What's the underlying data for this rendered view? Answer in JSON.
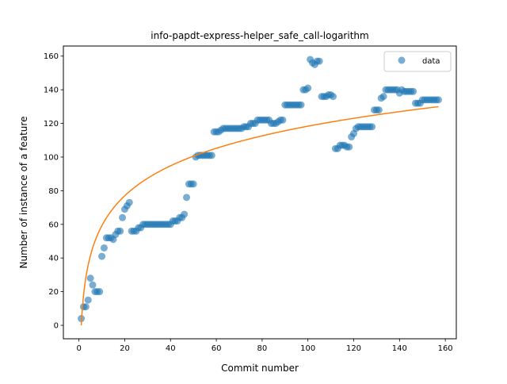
{
  "chart_data": {
    "type": "scatter",
    "title": "info-papdt-express-helper_safe_call-logarithm",
    "xlabel": "Commit number",
    "ylabel": "Number of instance of a feature",
    "xlim": [
      -6.8,
      164.8
    ],
    "ylim": [
      -8.0,
      166.0
    ],
    "grid": false,
    "legend_position": "top-right",
    "x_ticks": [
      "0",
      "20",
      "40",
      "60",
      "80",
      "100",
      "120",
      "140",
      "160"
    ],
    "y_ticks": [
      "0",
      "20",
      "40",
      "60",
      "80",
      "100",
      "120",
      "140",
      "160"
    ],
    "colors": {
      "data": "#1f77b4",
      "fit": "#ff7f0e"
    },
    "series": [
      {
        "name": "data",
        "kind": "scatter",
        "x": [
          1,
          2,
          3,
          4,
          5,
          6,
          7,
          8,
          9,
          10,
          11,
          12,
          13,
          14,
          15,
          16,
          17,
          18,
          19,
          20,
          21,
          22,
          23,
          24,
          25,
          26,
          27,
          28,
          29,
          30,
          31,
          32,
          33,
          34,
          35,
          36,
          37,
          38,
          39,
          40,
          41,
          42,
          43,
          44,
          45,
          46,
          47,
          48,
          49,
          50,
          51,
          52,
          53,
          54,
          55,
          56,
          57,
          58,
          59,
          60,
          61,
          62,
          63,
          64,
          65,
          66,
          67,
          68,
          69,
          70,
          71,
          72,
          73,
          74,
          75,
          76,
          77,
          78,
          79,
          80,
          81,
          82,
          83,
          84,
          85,
          86,
          87,
          88,
          89,
          90,
          91,
          92,
          93,
          94,
          95,
          96,
          97,
          98,
          99,
          100,
          101,
          102,
          103,
          104,
          105,
          106,
          107,
          108,
          109,
          110,
          111,
          112,
          113,
          114,
          115,
          116,
          117,
          118,
          119,
          120,
          121,
          122,
          123,
          124,
          125,
          126,
          127,
          128,
          129,
          130,
          131,
          132,
          133,
          134,
          135,
          136,
          137,
          138,
          139,
          140,
          141,
          142,
          143,
          144,
          145,
          146,
          147,
          148,
          149,
          150,
          151,
          152,
          153,
          154,
          155,
          156,
          157
        ],
        "y": [
          4,
          11,
          11,
          15,
          28,
          24,
          20,
          20,
          20,
          41,
          46,
          52,
          52,
          52,
          51,
          54,
          56,
          56,
          64,
          69,
          71,
          73,
          56,
          56,
          56,
          58,
          58,
          60,
          60,
          60,
          60,
          60,
          60,
          60,
          60,
          60,
          60,
          60,
          60,
          60,
          62,
          62,
          62,
          64,
          64,
          66,
          76,
          84,
          84,
          84,
          100,
          101,
          101,
          101,
          101,
          101,
          101,
          101,
          115,
          115,
          115,
          116,
          117,
          117,
          117,
          117,
          117,
          117,
          117,
          117,
          117,
          118,
          118,
          118,
          120,
          120,
          120,
          122,
          122,
          122,
          122,
          122,
          122,
          120,
          120,
          120,
          121,
          122,
          122,
          131,
          131,
          131,
          131,
          131,
          131,
          131,
          131,
          140,
          140,
          141,
          158,
          156,
          155,
          157,
          157,
          136,
          136,
          136,
          137,
          137,
          136,
          105,
          105,
          107,
          107,
          107,
          106,
          106,
          112,
          114,
          117,
          118,
          118,
          118,
          118,
          118,
          118,
          118,
          128,
          128,
          128,
          135,
          136,
          140,
          140,
          140,
          140,
          140,
          140,
          138,
          140,
          139,
          139,
          139,
          139,
          139,
          132,
          132,
          132,
          134,
          134,
          134,
          134,
          134,
          134,
          134,
          134
        ]
      },
      {
        "name": "",
        "kind": "line",
        "equation": "y = 25.7 * ln(x)",
        "coef": 25.7,
        "x_range": [
          1,
          157
        ]
      }
    ]
  }
}
